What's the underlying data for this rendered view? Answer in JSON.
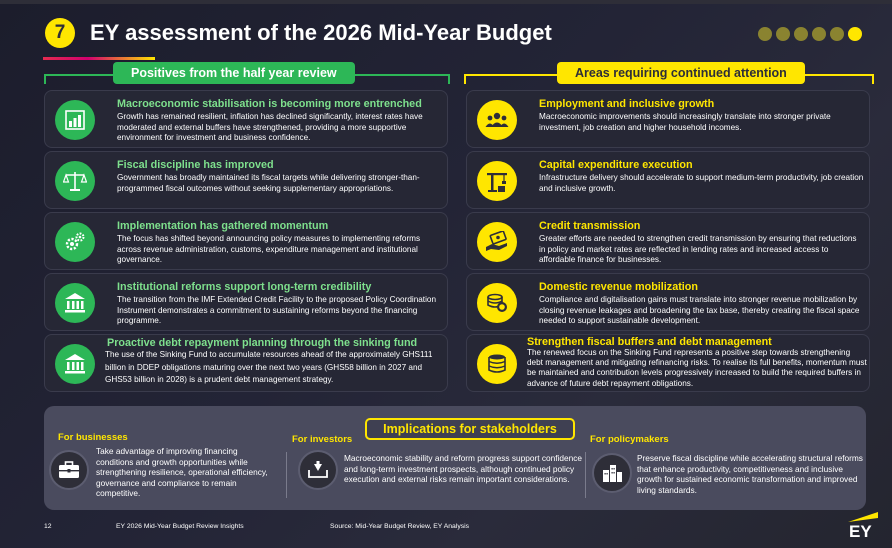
{
  "header": {
    "section_number": "7",
    "title": "EY assessment of the 2026 Mid-Year Budget",
    "pagination_dots": 6,
    "active_dot": 5
  },
  "positives": {
    "header": "Positives from the half year review",
    "items": [
      {
        "title": "Macroeconomic stabilisation is becoming more entrenched",
        "body": "Growth has remained resilient, inflation has declined significantly, interest rates have moderated and external buffers have strengthened, providing a more supportive environment for investment and business confidence.",
        "icon": "bar-chart-icon"
      },
      {
        "title": "Fiscal discipline has improved",
        "body": "Government has broadly maintained its fiscal targets while delivering stronger-than-programmed fiscal outcomes without seeking supplementary appropriations.",
        "icon": "scales-icon"
      },
      {
        "title": "Implementation has gathered momentum",
        "body": "The focus has shifted beyond announcing policy measures to implementing reforms across revenue administration, customs, expenditure management and institutional governance.",
        "icon": "gears-icon"
      },
      {
        "title": "Institutional reforms support long-term credibility",
        "body": "The transition from the IMF Extended Credit Facility to the proposed Policy Coordination Instrument demonstrates a commitment to sustaining reforms beyond the financing programme.",
        "icon": "institution-icon"
      },
      {
        "title": "Proactive debt repayment planning through the sinking fund",
        "body": "The use of the Sinking Fund to accumulate resources ahead of the approximately GHS111 billion in DDEP obligations maturing over the next two years (GHS58 billion in 2027 and GHS53 billion in 2028) is a prudent debt management strategy.",
        "icon": "bank-icon"
      }
    ]
  },
  "attention": {
    "header": "Areas requiring continued attention",
    "items": [
      {
        "title": "Employment and inclusive growth",
        "body": "Macroeconomic improvements should increasingly translate into stronger private investment, job creation and higher household incomes.",
        "icon": "people-icon"
      },
      {
        "title": "Capital expenditure execution",
        "body": "Infrastructure delivery should accelerate to support medium-term productivity, job creation and inclusive growth.",
        "icon": "crane-icon"
      },
      {
        "title": "Credit transmission",
        "body": "Greater efforts are needed to strengthen credit transmission by ensuring that reductions in policy and market rates are reflected in lending rates and increased access to affordable finance for businesses.",
        "icon": "money-hand-icon"
      },
      {
        "title": "Domestic revenue mobilization",
        "body": "Compliance and digitalisation gains must translate into stronger revenue mobilization by closing revenue leakages and broadening the tax base, thereby creating the fiscal space needed to support sustainable development.",
        "icon": "coins-icon"
      },
      {
        "title": "Strengthen fiscal buffers and debt management",
        "body": "The renewed focus on the Sinking Fund represents a positive step towards strengthening debt management and mitigating refinancing risks. To realise its full benefits, momentum must be maintained and contribution levels progressively increased to build the required buffers in advance of future debt repayment obligations.",
        "icon": "coin-stack-icon"
      }
    ]
  },
  "implications": {
    "header": "Implications for stakeholders",
    "businesses": {
      "label": "For businesses",
      "text": "Take advantage of improving financing conditions and growth opportunities while strengthening resilience, operational efficiency, governance and compliance to remain competitive.",
      "icon": "briefcase-icon"
    },
    "investors": {
      "label": "For investors",
      "text": "Macroeconomic stability and reform progress support confidence and long-term investment prospects, although continued policy execution and external risks remain important considerations.",
      "icon": "investment-tray-icon"
    },
    "policymakers": {
      "label": "For policymakers",
      "text": "Preserve fiscal discipline while accelerating structural reforms that enhance productivity, competitiveness and inclusive growth for sustained economic transformation and improved living standards.",
      "icon": "city-buildings-icon"
    }
  },
  "footer": {
    "page_number": "12",
    "report_title": "EY 2026 Mid-Year Budget Review  Insights",
    "source": "Source: Mid-Year Budget Review, EY Analysis",
    "logo_text": "EY"
  },
  "colors": {
    "ey_yellow": "#ffe600",
    "positive_green": "#2db757",
    "background": "#232436",
    "card": "#262735"
  }
}
